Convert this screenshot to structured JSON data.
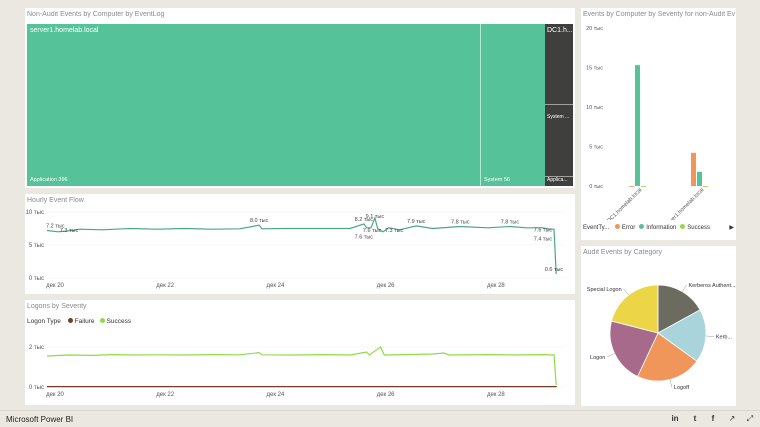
{
  "treemap": {
    "title": "Non-Audit Events by Computer by EventLog",
    "server_label": "server1.homelab.local",
    "dc_label": "DC1.h...",
    "app_label": "Application 396",
    "system_label": "System 56",
    "dc_system_label": "System ...",
    "dc_app_label": "Applica...",
    "color_main": "#56c29a",
    "color_dark": "#3f3f3d"
  },
  "severity_chart": {
    "title": "Events by Computer by Severity for non-Audit Ev...",
    "legend_title": "EventTy...",
    "legend_more_icon": "triangle-right-icon",
    "chart_data": {
      "type": "bar",
      "categories": [
        "DC1.homelab.local",
        "server1.homelab.local"
      ],
      "series": [
        {
          "name": "Error",
          "color": "#f0965a",
          "values": [
            0,
            4200
          ]
        },
        {
          "name": "Information",
          "color": "#56c29a",
          "values": [
            15300,
            1800
          ]
        },
        {
          "name": "Success",
          "color": "#8fdc47",
          "values": [
            0,
            0
          ]
        }
      ],
      "ylim": [
        0,
        20000
      ],
      "yticks": [
        0,
        5000,
        10000,
        15000,
        20000
      ],
      "ytick_labels": [
        "0 тыс",
        "5 тыс",
        "10 тыс",
        "15 тыс",
        "20 тыс"
      ]
    }
  },
  "hourly_chart": {
    "title": "Hourly Event Flow",
    "chart_data": {
      "type": "line",
      "color": "#4aa68a",
      "xtick_labels": [
        "дек 20",
        "дек 22",
        "дек 24",
        "дек 26",
        "дек 28"
      ],
      "xticks": [
        0,
        2,
        4,
        6,
        8
      ],
      "xlim": [
        0,
        9.4
      ],
      "ylim": [
        0,
        10000
      ],
      "yticks": [
        0,
        5000,
        10000
      ],
      "ytick_labels": [
        "0 тыс",
        "5 тыс",
        "10 тыс"
      ],
      "points": [
        [
          0,
          7200
        ],
        [
          0.2,
          7000
        ],
        [
          0.35,
          7100
        ],
        [
          0.6,
          7400
        ],
        [
          1,
          7300
        ],
        [
          1.5,
          7500
        ],
        [
          2,
          7400
        ],
        [
          2.5,
          7500
        ],
        [
          3,
          7400
        ],
        [
          3.5,
          7450
        ],
        [
          3.85,
          8000
        ],
        [
          3.9,
          7450
        ],
        [
          4.3,
          7500
        ],
        [
          5,
          7500
        ],
        [
          5.5,
          7500
        ],
        [
          5.75,
          8200
        ],
        [
          5.8,
          7600
        ],
        [
          5.88,
          7600
        ],
        [
          5.95,
          9100
        ],
        [
          6.0,
          7500
        ],
        [
          6.1,
          7000
        ],
        [
          6.2,
          7600
        ],
        [
          6.4,
          7300
        ],
        [
          6.7,
          7900
        ],
        [
          7,
          7500
        ],
        [
          7.5,
          7800
        ],
        [
          8,
          7600
        ],
        [
          8.4,
          7800
        ],
        [
          8.7,
          7600
        ],
        [
          9.0,
          7600
        ],
        [
          9.12,
          7400
        ],
        [
          9.2,
          7400
        ],
        [
          9.24,
          600
        ]
      ],
      "data_labels": [
        {
          "x": 0.15,
          "y": 7200,
          "text": "7.2 тыс"
        },
        {
          "x": 0.4,
          "y": 6500,
          "text": "7.3 тыс"
        },
        {
          "x": 3.85,
          "y": 8000,
          "text": "8.0 тыс"
        },
        {
          "x": 5.75,
          "y": 8200,
          "text": "8.2 тыс"
        },
        {
          "x": 5.95,
          "y": 8600,
          "text": "9.1 тыс"
        },
        {
          "x": 5.9,
          "y": 6500,
          "text": "7.6 тыс"
        },
        {
          "x": 5.75,
          "y": 5500,
          "text": "7.6 тыс"
        },
        {
          "x": 6.3,
          "y": 6500,
          "text": "7.3 тыс"
        },
        {
          "x": 6.7,
          "y": 7900,
          "text": "7.9 тыс"
        },
        {
          "x": 7.5,
          "y": 7800,
          "text": "7.8 тыс"
        },
        {
          "x": 8.4,
          "y": 7800,
          "text": "7.8 тыс"
        },
        {
          "x": 9.0,
          "y": 6600,
          "text": "7.6 тыс"
        },
        {
          "x": 9.0,
          "y": 5200,
          "text": "7.4 тыс"
        },
        {
          "x": 9.2,
          "y": 600,
          "text": "0.6 тыс"
        }
      ]
    }
  },
  "logons_chart": {
    "title": "Logons by Severity",
    "legend_title": "Logon Type",
    "chart_data": {
      "type": "line",
      "xtick_labels": [
        "дек 20",
        "дек 22",
        "дек 24",
        "дек 26",
        "дек 28"
      ],
      "xticks": [
        0,
        2,
        4,
        6,
        8
      ],
      "xlim": [
        0,
        9.4
      ],
      "ylim": [
        0,
        2800
      ],
      "yticks": [
        0,
        2000
      ],
      "ytick_labels": [
        "0 тыс",
        "2 тыс"
      ],
      "series": [
        {
          "name": "Failure",
          "color": "#7a3a28",
          "points": [
            [
              0,
              20
            ],
            [
              9.24,
              20
            ],
            [
              9.24,
              0
            ]
          ]
        },
        {
          "name": "Success",
          "color": "#8fdc47",
          "points": [
            [
              0,
              1550
            ],
            [
              0.4,
              1600
            ],
            [
              0.8,
              1580
            ],
            [
              1.2,
              1620
            ],
            [
              1.6,
              1600
            ],
            [
              2,
              1610
            ],
            [
              2.5,
              1600
            ],
            [
              3,
              1620
            ],
            [
              3.5,
              1610
            ],
            [
              3.85,
              1720
            ],
            [
              3.9,
              1610
            ],
            [
              4.5,
              1600
            ],
            [
              5,
              1620
            ],
            [
              5.5,
              1600
            ],
            [
              5.8,
              1750
            ],
            [
              5.85,
              1600
            ],
            [
              6.05,
              2000
            ],
            [
              6.12,
              1600
            ],
            [
              6.5,
              1620
            ],
            [
              7,
              1650
            ],
            [
              7.2,
              1700
            ],
            [
              7.3,
              1600
            ],
            [
              8,
              1620
            ],
            [
              8.5,
              1600
            ],
            [
              9.0,
              1620
            ],
            [
              9.2,
              1600
            ],
            [
              9.24,
              100
            ]
          ]
        }
      ]
    }
  },
  "audit_chart": {
    "title": "Audit Events by Category",
    "chart_data": {
      "type": "pie",
      "slices": [
        {
          "label": "Kerberos Authent...",
          "value": 17,
          "color": "#6b6b60"
        },
        {
          "label": "Kerb...",
          "value": 18,
          "color": "#a9d4dc"
        },
        {
          "label": "Logoff",
          "value": 22,
          "color": "#f0965a"
        },
        {
          "label": "Logon",
          "value": 22,
          "color": "#a86a8a"
        },
        {
          "label": "Special Logon",
          "value": 21,
          "color": "#ecd648"
        }
      ]
    }
  },
  "footer": {
    "brand": "Microsoft Power BI",
    "icons": [
      "linkedin-icon",
      "twitter-icon",
      "facebook-icon",
      "share-icon",
      "fullscreen-icon"
    ],
    "icon_glyphs": [
      "in",
      "t",
      "f",
      "↗",
      "⤢"
    ]
  }
}
